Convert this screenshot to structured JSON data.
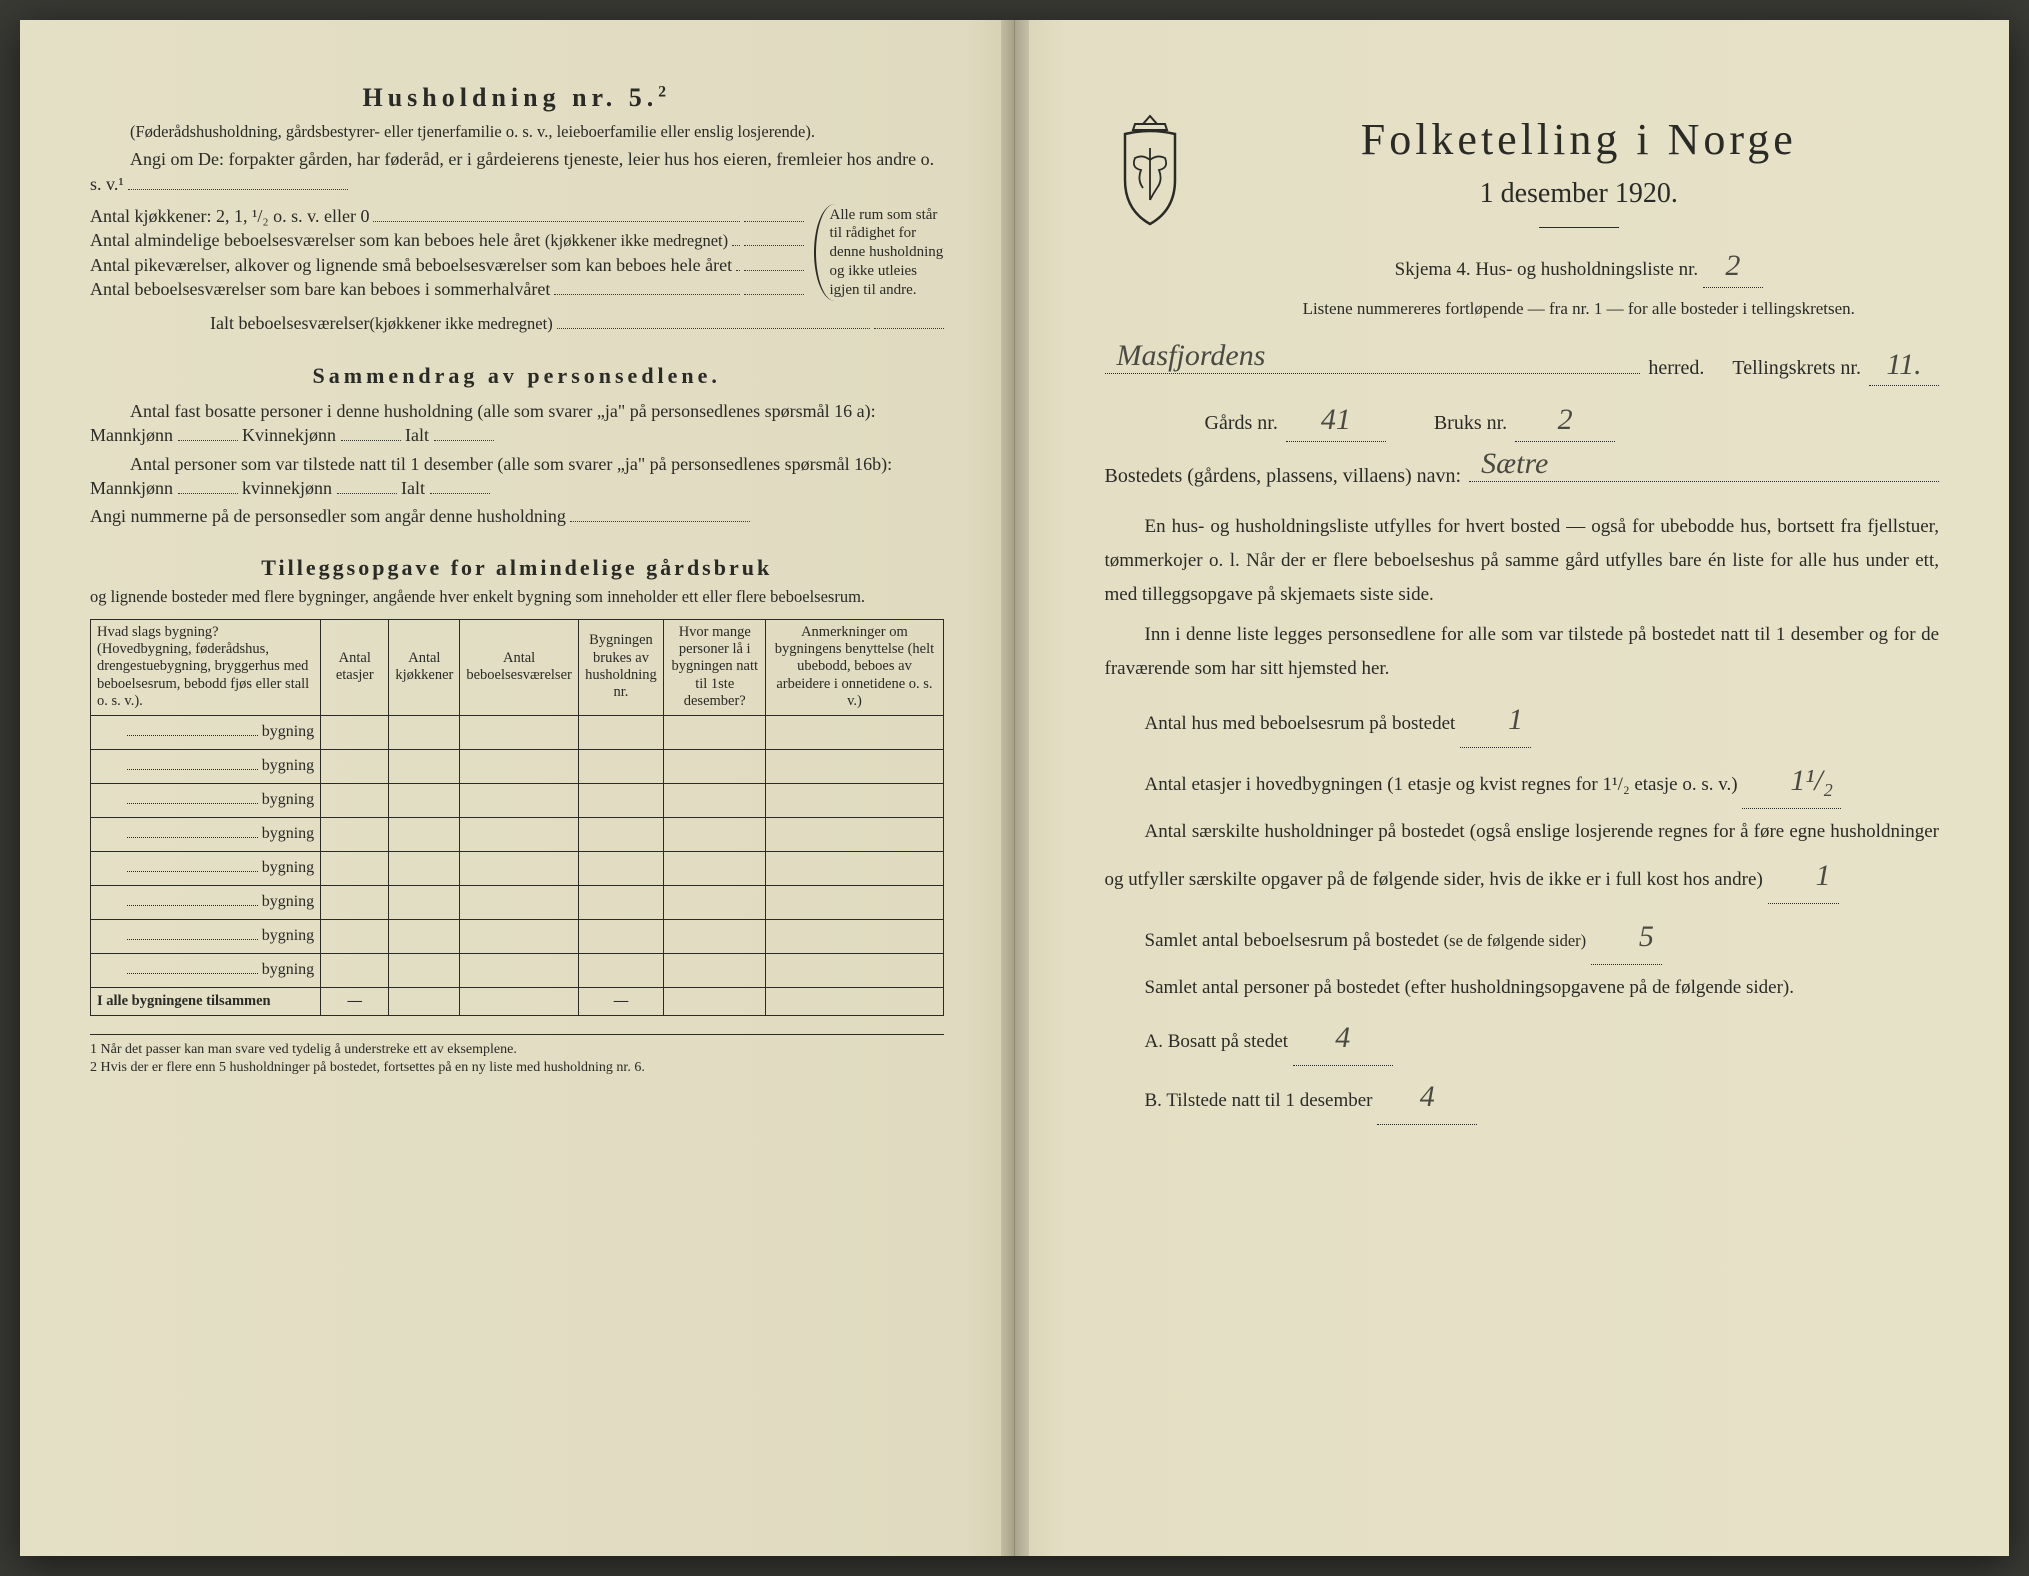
{
  "left": {
    "heading": "Husholdning nr. 5.",
    "heading_sup": "2",
    "paren": "(Føderådshusholdning, gårdsbestyrer- eller tjenerfamilie o. s. v., leieboerfamilie eller enslig losjerende).",
    "angi": "Angi om De:  forpakter gården, har føderåd, er i gårdeierens tjeneste, leier hus hos eieren, fremleier hos andre o. s. v.¹",
    "kjokken_label": "Antal kjøkkener: 2, 1, ¹/₂ o. s. v. eller 0",
    "alm_label1": "Antal almindelige beboelsesværelser som kan beboes hele året",
    "alm_label1_tiny": "(kjøkkener ikke medregnet)",
    "pike_label": "Antal pikeværelser, alkover og lignende små beboelsesværelser som kan beboes hele året",
    "sommer_label": "Antal beboelsesværelser som bare kan beboes i sommerhalvåret",
    "ialt_label": "Ialt beboelsesværelser",
    "ialt_tiny": "(kjøkkener ikke medregnet)",
    "brace_text": "Alle rum som står til rådighet for denne husholdning og ikke utleies igjen til andre.",
    "sammendrag_title": "Sammendrag av personsedlene.",
    "samm_p1a": "Antal fast bosatte personer i denne husholdning (alle som svarer „ja\" på personsedlenes spørsmål 16 a): Mannkjønn",
    "samm_kv": "Kvinnekjønn",
    "samm_ialt": "Ialt",
    "samm_p2a": "Antal personer som var tilstede natt til 1 desember (alle som svarer „ja\" på personsedlenes spørsmål 16b): Mannkjønn",
    "samm_kv2": "kvinnekjønn",
    "angi_num": "Angi nummerne på de personsedler som angår denne husholdning",
    "tillegg_title": "Tilleggsopgave for almindelige gårdsbruk",
    "tillegg_sub": "og lignende bosteder med flere bygninger, angående hver enkelt bygning som inneholder ett eller flere beboelsesrum.",
    "table": {
      "headers": [
        "Hvad slags bygning?\n(Hovedbygning, føderådshus, drengestuebygning, bryggerhus med beboelsesrum, bebodd fjøs eller stall o. s. v.).",
        "Antal etasjer",
        "Antal kjøkkener",
        "Antal beboelsesværelser",
        "Bygningen brukes av husholdning nr.",
        "Hvor mange personer lå i bygningen natt til 1ste desember?",
        "Anmerkninger om bygningens benyttelse (helt ubebodd, beboes av arbeidere i onnetidene o. s. v.)"
      ],
      "row_label": "bygning",
      "row_count": 8,
      "total_label": "I alle bygningene tilsammen",
      "dash": "—"
    },
    "fn1": "1  Når det passer kan man svare ved tydelig å understreke ett av eksemplene.",
    "fn2": "2  Hvis der er flere enn 5 husholdninger på bostedet, fortsettes på en ny liste med husholdning nr. 6."
  },
  "right": {
    "title": "Folketelling i Norge",
    "subtitle": "1 desember 1920.",
    "skjema": "Skjema 4.  Hus- og husholdningsliste nr.",
    "skjema_val": "2",
    "listene": "Listene nummereres fortløpende — fra nr. 1 — for alle bosteder i tellingskretsen.",
    "herred_val": "Masfjordens",
    "herred_lbl": "herred.",
    "tellingskrets_lbl": "Tellingskrets nr.",
    "tellingskrets_val": "11.",
    "gards_lbl": "Gårds nr.",
    "gards_val": "41",
    "bruks_lbl": "Bruks nr.",
    "bruks_val": "2",
    "bosted_lbl": "Bostedets (gårdens, plassens, villaens) navn:",
    "bosted_val": "Sætre",
    "para1": "En hus- og husholdningsliste utfylles for hvert bosted — også for ubebodde hus, bortsett fra fjellstuer, tømmerkojer o. l. Når der er flere beboelseshus på samme gård utfylles bare én liste for alle hus under ett, med tilleggsopgave på skjemaets siste side.",
    "para2": "Inn i denne liste legges personsedlene for alle som var tilstede på bostedet natt til 1 desember og for de fraværende som har sitt hjemsted her.",
    "antal_hus_lbl": "Antal hus med beboelsesrum på bostedet",
    "antal_hus_val": "1",
    "etasjer_lbl_a": "Antal etasjer i hovedbygningen (1 etasje og kvist regnes for 1¹/₂ etasje o. s. v.)",
    "etasjer_val": "1¹/₂",
    "saerskilte_lbl": "Antal særskilte husholdninger på bostedet (også enslige losjerende regnes for å føre egne husholdninger og utfyller særskilte opgaver på de følgende sider, hvis de ikke er i full kost hos andre)",
    "saerskilte_val": "1",
    "samlet_rum_lbl": "Samlet antal beboelsesrum på bostedet",
    "samlet_rum_tiny": "(se de følgende sider)",
    "samlet_rum_val": "5",
    "samlet_pers_lbl": "Samlet antal personer på bostedet (efter husholdningsopgavene på de følgende sider).",
    "a_lbl": "A.  Bosatt på stedet",
    "a_val": "4",
    "b_lbl": "B.  Tilstede natt til 1 desember",
    "b_val": "4"
  },
  "colors": {
    "paper": "#e6e2c8",
    "ink": "#2a2a26",
    "pencil": "#4a4a42"
  }
}
